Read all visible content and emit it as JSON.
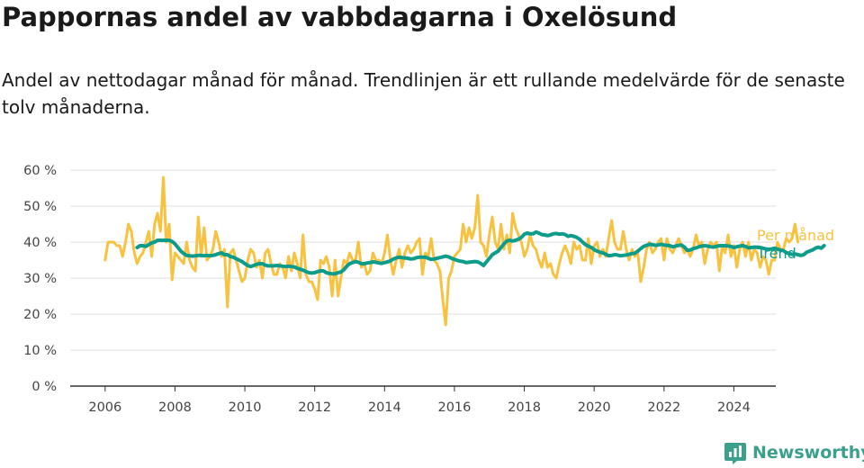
{
  "title": "Pappornas andel av vabbdagarna i Oxelösund",
  "subtitle": "Andel av nettodagar månad för månad. Trendlinjen är ett rullande medelvärde för de senaste tolv månaderna.",
  "brand": {
    "name": "Newsworthy",
    "icon": "newsworthy-logo-icon"
  },
  "colors": {
    "monthly": "#f7c23f",
    "trend": "#0d9b8a",
    "grid": "#dddddd",
    "axis": "#333333"
  },
  "chart_data": {
    "type": "line",
    "x_ticks": [
      "2006",
      "2008",
      "2010",
      "2012",
      "2014",
      "2016",
      "2018",
      "2020",
      "2022",
      "2024"
    ],
    "y_ticks": [
      "0 %",
      "10 %",
      "20 %",
      "30 %",
      "40 %",
      "50 %",
      "60 %"
    ],
    "xlim": [
      2005.0,
      2025.2
    ],
    "ylim": [
      0,
      60
    ],
    "grid": true,
    "legend": "end-of-line labels",
    "series": [
      {
        "name": "Per månad",
        "start": 2006.0,
        "step": "month",
        "values": [
          35,
          40,
          40,
          40,
          39,
          39,
          36,
          40,
          45,
          43,
          37,
          34,
          36,
          37,
          40,
          43,
          36,
          45,
          48,
          43,
          58,
          40,
          45,
          29.5,
          37,
          36,
          35,
          34,
          40,
          35,
          33,
          32,
          47,
          36,
          44,
          35,
          36,
          38,
          43,
          40,
          36,
          38,
          22,
          37,
          38,
          35,
          32,
          29,
          30,
          35,
          38,
          37,
          33,
          35,
          30,
          37,
          38,
          34,
          31,
          31,
          34,
          33,
          30,
          36,
          32,
          37,
          34,
          30,
          42,
          31,
          29,
          29,
          27,
          24,
          35,
          34,
          36,
          33,
          25,
          35,
          25,
          30,
          35,
          34,
          37,
          35,
          35,
          40,
          33,
          34,
          31,
          32,
          37,
          35,
          35,
          34,
          37,
          42,
          35,
          31,
          35,
          38,
          33,
          37,
          39,
          37,
          38,
          40,
          41,
          31,
          37,
          36,
          41,
          35,
          34,
          32,
          24,
          17,
          30,
          32,
          36,
          37,
          38,
          45,
          40,
          44,
          41,
          44,
          53,
          40,
          39,
          36,
          42,
          47,
          40,
          38,
          45,
          38,
          42,
          37,
          48,
          44,
          42,
          40,
          36,
          38,
          42,
          39,
          38,
          35,
          33,
          37,
          33,
          34,
          31,
          30,
          34,
          37,
          39,
          37,
          34,
          40,
          38,
          39,
          35,
          35,
          41,
          34,
          39,
          40,
          36,
          38,
          36,
          41,
          46,
          40,
          38,
          38,
          43,
          38,
          35,
          38,
          36,
          37,
          29,
          33,
          38,
          40,
          37,
          38,
          40,
          41,
          35,
          41,
          38,
          37,
          39,
          41,
          39,
          37,
          38,
          36,
          38,
          42,
          39,
          40,
          34,
          38,
          40,
          39,
          40,
          32,
          39,
          37,
          42,
          36,
          39,
          33,
          38,
          40,
          36,
          40,
          35,
          38,
          37,
          33,
          36,
          35,
          31,
          35,
          35,
          40,
          38,
          38,
          41,
          40,
          41,
          45,
          40
        ]
      },
      {
        "name": "Trend",
        "start": 2006.917,
        "step": "month",
        "values": [
          38.5,
          39,
          39,
          38.8,
          39.3,
          39.8,
          40,
          40.5,
          40.5,
          40.5,
          40.5,
          40.5,
          40.2,
          39.5,
          38.5,
          37.5,
          36.8,
          36.3,
          36.2,
          36.1,
          36.2,
          36.3,
          36.3,
          36.2,
          36.3,
          36.2,
          36.3,
          36.5,
          36.8,
          37,
          36.5,
          36.5,
          36,
          35.8,
          35.4,
          35,
          34.6,
          34,
          33.5,
          33.2,
          33.5,
          33.8,
          34,
          34,
          33.6,
          33.4,
          33.4,
          33.4,
          33.5,
          33.4,
          33.3,
          33.2,
          33.3,
          33.2,
          33.1,
          32.7,
          32.5,
          32.2,
          31.8,
          31.5,
          31.4,
          31.5,
          31.8,
          32,
          32,
          31.5,
          31.3,
          31.2,
          31.2,
          31.5,
          31.7,
          32.3,
          33.3,
          34,
          34.3,
          34.6,
          34.4,
          34,
          34,
          34.2,
          34.3,
          34.5,
          34.4,
          34.2,
          34.1,
          34.3,
          34.5,
          34.8,
          35.3,
          35.6,
          35.8,
          35.7,
          35.6,
          35.5,
          35.3,
          35.4,
          35.7,
          35.8,
          35.8,
          35.8,
          35.5,
          35.2,
          35.3,
          35.5,
          35.7,
          35.9,
          36.1,
          35.9,
          35.5,
          35.2,
          34.9,
          34.7,
          34.6,
          34.3,
          34.4,
          34.5,
          34.6,
          34.5,
          34.1,
          33.5,
          34.5,
          35.5,
          36.5,
          37,
          37.5,
          38.5,
          39.5,
          40.3,
          40.5,
          40.3,
          40.5,
          40.8,
          41.3,
          42.2,
          42.5,
          42.3,
          42.3,
          42.8,
          42.5,
          42.1,
          42,
          41.8,
          42,
          42.3,
          42.4,
          42.2,
          42.3,
          42.1,
          41.6,
          41.8,
          41.6,
          41.3,
          40.8,
          40,
          39.3,
          38.9,
          38.5,
          37.9,
          37.5,
          37.2,
          37,
          36.6,
          36.2,
          36.3,
          36.5,
          36.4,
          36.2,
          36.3,
          36.4,
          36.6,
          36.8,
          36.9,
          37.5,
          38.2,
          38.8,
          39.1,
          39.4,
          39.3,
          39.1,
          39.2,
          39.4,
          39.2,
          39.1,
          39,
          38.7,
          38.9,
          39.1,
          39.2,
          38.6,
          37.7,
          37.8,
          38.2,
          38.4,
          38.7,
          38.9,
          39,
          38.9,
          38.7,
          38.6,
          38.8,
          39,
          39,
          39,
          38.9,
          38.8,
          38.5,
          38.7,
          38.9,
          39,
          38.8,
          38.4,
          38.5,
          38.6,
          38.6,
          38.5,
          38.3,
          38.1,
          38,
          38.1,
          38.3,
          38,
          37.8,
          37.6,
          37.1,
          36.8,
          36.6,
          36.7,
          36.5,
          36.3,
          36.5,
          37.2,
          37.5,
          37.8,
          38.3,
          38.6,
          38.3,
          39
        ]
      }
    ]
  }
}
